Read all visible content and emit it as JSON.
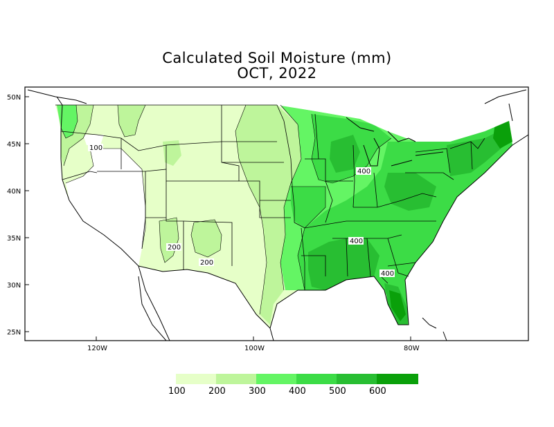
{
  "title": "Calculated Soil Moisture (mm)",
  "subtitle": "OCT, 2022",
  "lat_labels": [
    "50N",
    "45N",
    "40N",
    "35N",
    "30N",
    "25N"
  ],
  "lon_labels": [
    "120W",
    "100W",
    "80W"
  ],
  "contour_labels": [
    "100",
    "200",
    "200",
    "400",
    "400",
    "400"
  ],
  "legend": {
    "values": [
      "100",
      "200",
      "300",
      "400",
      "500",
      "600"
    ],
    "colors": [
      "#e6ffc8",
      "#bef59b",
      "#64f564",
      "#3cdc46",
      "#28be32",
      "#0aa00a"
    ]
  },
  "colors": {
    "lt100": "#ffffff",
    "c100": "#e6ffc8",
    "c200": "#bef59b",
    "c300": "#64f564",
    "c400": "#3cdc46",
    "c500": "#28be32",
    "c600": "#0aa00a"
  }
}
